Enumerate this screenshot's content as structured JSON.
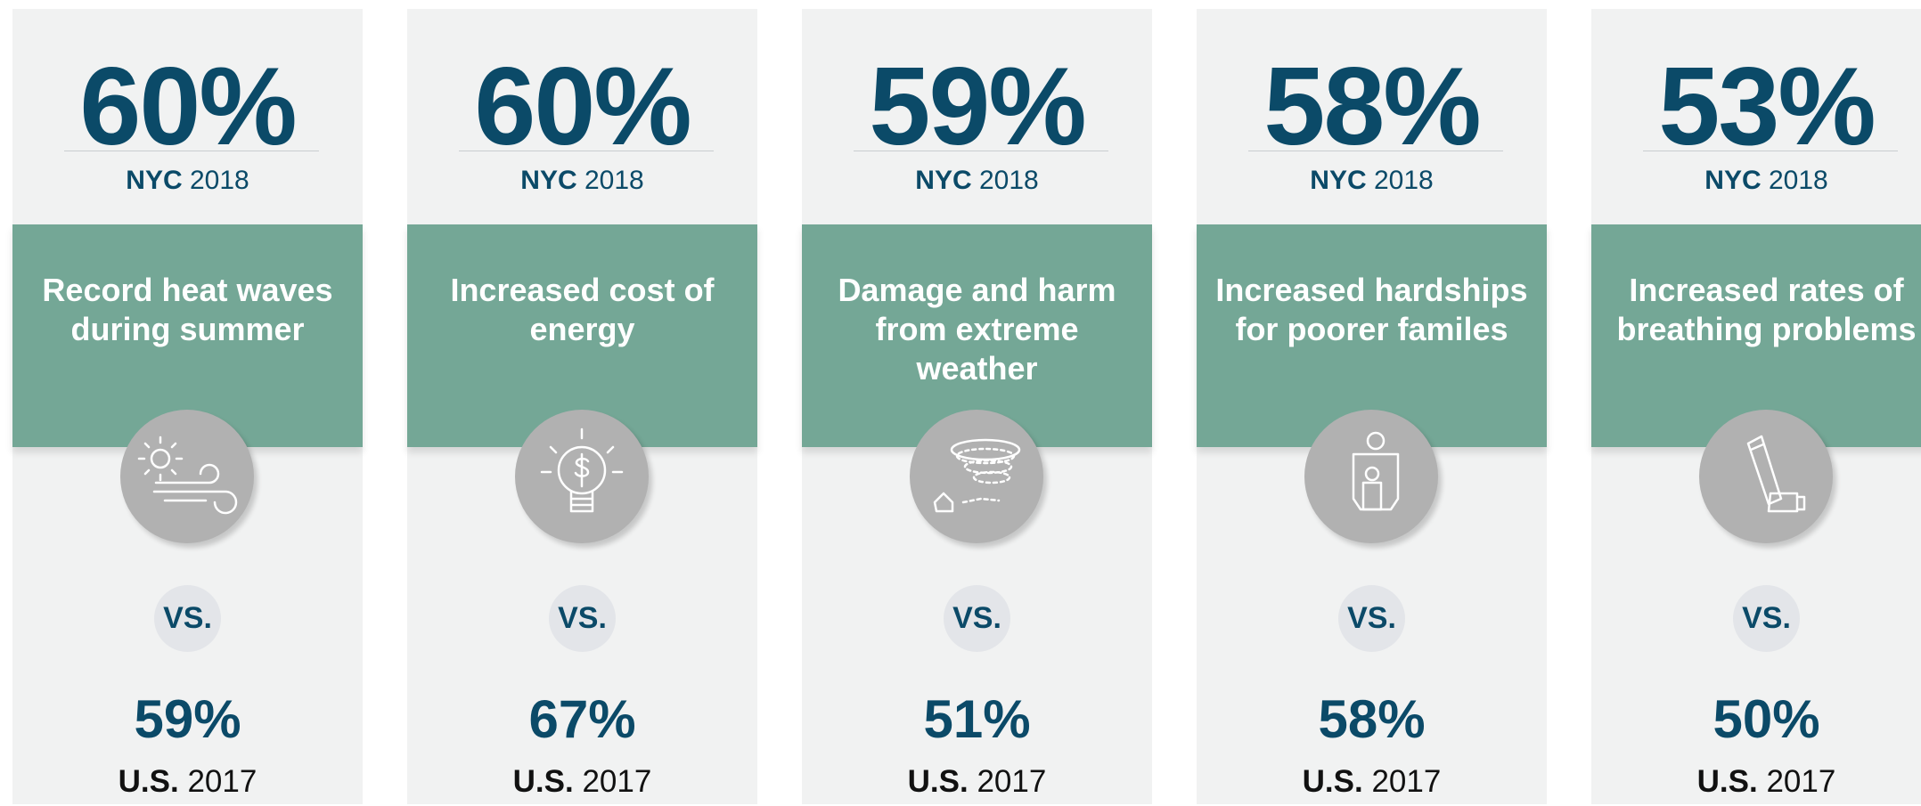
{
  "cards": [
    {
      "nyc_value": "60%",
      "nyc_label": "NYC",
      "nyc_year": "2018",
      "title_lines": [
        "Record heat waves",
        "during summer"
      ],
      "vs": "VS.",
      "us_value": "59%",
      "us_label": "U.S.",
      "us_year": "2017"
    },
    {
      "nyc_value": "60%",
      "nyc_label": "NYC",
      "nyc_year": "2018",
      "title_lines": [
        "Increased cost of",
        "energy"
      ],
      "vs": "VS.",
      "us_value": "67%",
      "us_label": "U.S.",
      "us_year": "2017"
    },
    {
      "nyc_value": "59%",
      "nyc_label": "NYC",
      "nyc_year": "2018",
      "title_lines": [
        "Damage and harm",
        "from extreme",
        "weather"
      ],
      "vs": "VS.",
      "us_value": "51%",
      "us_label": "U.S.",
      "us_year": "2017"
    },
    {
      "nyc_value": "58%",
      "nyc_label": "NYC",
      "nyc_year": "2018",
      "title_lines": [
        "Increased hardships",
        "for poorer familes"
      ],
      "vs": "VS.",
      "us_value": "58%",
      "us_label": "U.S.",
      "us_year": "2017"
    },
    {
      "nyc_value": "53%",
      "nyc_label": "NYC",
      "nyc_year": "2018",
      "title_lines": [
        "Increased rates of",
        "breathing problems"
      ],
      "vs": "VS.",
      "us_value": "50%",
      "us_label": "U.S.",
      "us_year": "2017"
    }
  ]
}
